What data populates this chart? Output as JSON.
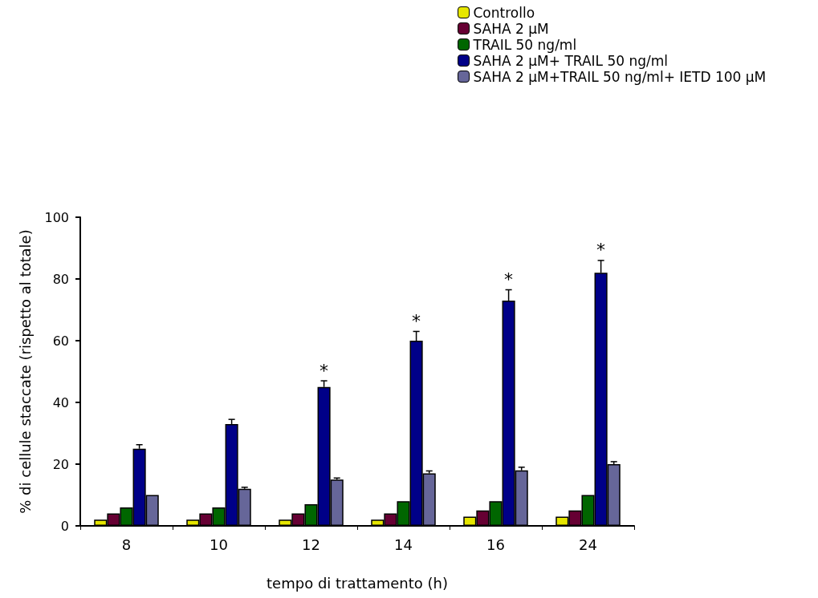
{
  "chart_data": {
    "type": "bar",
    "xlabel": "tempo di trattamento (h)",
    "ylabel": "% di cellule staccate (rispetto al totale)",
    "categories": [
      "8",
      "10",
      "12",
      "14",
      "16",
      "24"
    ],
    "series": [
      {
        "name": "Controllo",
        "color": "#e6e600",
        "values": [
          2,
          2,
          2,
          2,
          3,
          3
        ]
      },
      {
        "name": "SAHA 2 μM",
        "color": "#660033",
        "values": [
          4,
          4,
          4,
          4,
          5,
          5
        ]
      },
      {
        "name": "TRAIL 50 ng/ml",
        "color": "#006600",
        "values": [
          6,
          6,
          7,
          8,
          8,
          10
        ]
      },
      {
        "name": "SAHA 2 μM+ TRAIL 50 ng/ml",
        "color": "#000088",
        "values": [
          25,
          33,
          45,
          60,
          73,
          82
        ],
        "errors": [
          1.3,
          1.5,
          2,
          3,
          3.5,
          4
        ],
        "value_labels": [
          null,
          null,
          "*",
          "*",
          "*",
          "*"
        ]
      },
      {
        "name": "SAHA 2 μM+TRAIL 50 ng/ml+ IETD 100 μM",
        "color": "#666699",
        "values": [
          10,
          12,
          15,
          17,
          18,
          20
        ],
        "errors": [
          null,
          0.5,
          0.5,
          0.8,
          1,
          0.8
        ]
      }
    ],
    "ylim": [
      0,
      100
    ],
    "yticks": [
      0,
      20,
      40,
      60,
      80,
      100
    ],
    "legend": "top right"
  }
}
